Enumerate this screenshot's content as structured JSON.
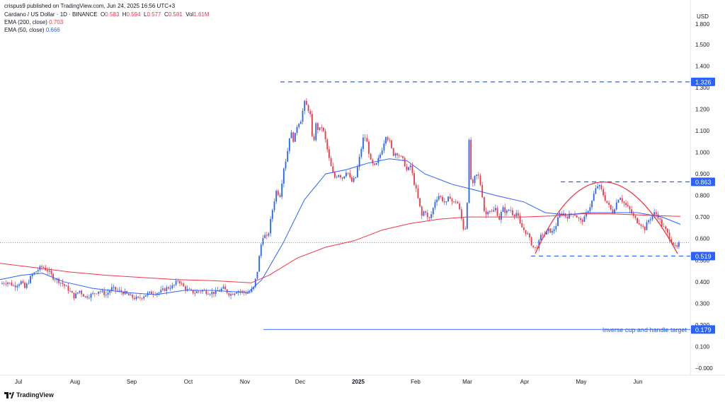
{
  "header": {
    "publisher": "crispus9 published on TradingView.com, Jun 24, 2025 16:56 UTC+3",
    "symbol": "Cardano / US Dollar · 1D · BINANCE",
    "o_label": "O",
    "o": "0.583",
    "h_label": "H",
    "h": "0.594",
    "l_label": "L",
    "l": "0.577",
    "c_label": "C",
    "c": "0.581",
    "vol_label": "Vol",
    "vol": "1.61M",
    "ema200_label": "EMA (200, close)",
    "ema200": "0.703",
    "ema50_label": "EMA (50, close)",
    "ema50": "0.666"
  },
  "footer": {
    "brand": "TradingView"
  },
  "colors": {
    "up": "#2962ff",
    "down": "#f23645",
    "ema200": "#f23645",
    "ema50": "#2962ff",
    "level": "#2962ff",
    "cup": "#f23645"
  },
  "chart_data": {
    "type": "candlestick",
    "currency": "USD",
    "ylim": [
      -0.03,
      1.86
    ],
    "y_ticks": [
      "−0.000",
      "0.100",
      "0.200",
      "0.300",
      "0.400",
      "0.500",
      "0.600",
      "0.700",
      "0.800",
      "0.900",
      "1.000",
      "1.100",
      "1.200",
      "1.300",
      "1.400",
      "1.500",
      "1.800"
    ],
    "x_ticks": [
      "Jul",
      "Aug",
      "Sep",
      "Oct",
      "Nov",
      "Dec",
      "2025",
      "Feb",
      "Mar",
      "Apr",
      "May",
      "Jun"
    ],
    "price_path": [
      [
        0,
        0.39
      ],
      [
        10,
        0.4
      ],
      [
        20,
        0.38
      ],
      [
        30,
        0.4
      ],
      [
        35,
        0.37
      ],
      [
        45,
        0.43
      ],
      [
        55,
        0.46
      ],
      [
        60,
        0.47
      ],
      [
        68,
        0.45
      ],
      [
        75,
        0.42
      ],
      [
        85,
        0.4
      ],
      [
        95,
        0.37
      ],
      [
        105,
        0.33
      ],
      [
        112,
        0.36
      ],
      [
        120,
        0.33
      ],
      [
        130,
        0.34
      ],
      [
        140,
        0.36
      ],
      [
        150,
        0.34
      ],
      [
        158,
        0.37
      ],
      [
        165,
        0.36
      ],
      [
        175,
        0.35
      ],
      [
        185,
        0.33
      ],
      [
        195,
        0.32
      ],
      [
        205,
        0.34
      ],
      [
        215,
        0.35
      ],
      [
        225,
        0.35
      ],
      [
        235,
        0.37
      ],
      [
        245,
        0.38
      ],
      [
        252,
        0.41
      ],
      [
        258,
        0.38
      ],
      [
        265,
        0.36
      ],
      [
        275,
        0.35
      ],
      [
        285,
        0.36
      ],
      [
        295,
        0.35
      ],
      [
        305,
        0.35
      ],
      [
        315,
        0.37
      ],
      [
        325,
        0.34
      ],
      [
        335,
        0.36
      ],
      [
        345,
        0.35
      ],
      [
        352,
        0.35
      ],
      [
        358,
        0.37
      ],
      [
        363,
        0.44
      ],
      [
        368,
        0.56
      ],
      [
        372,
        0.62
      ],
      [
        378,
        0.6
      ],
      [
        384,
        0.72
      ],
      [
        390,
        0.82
      ],
      [
        396,
        0.8
      ],
      [
        400,
        0.92
      ],
      [
        405,
        0.98
      ],
      [
        410,
        1.1
      ],
      [
        415,
        1.05
      ],
      [
        420,
        1.13
      ],
      [
        425,
        1.15
      ],
      [
        430,
        1.23
      ],
      [
        434,
        1.21
      ],
      [
        438,
        1.18
      ],
      [
        442,
        1.02
      ],
      [
        446,
        1.13
      ],
      [
        450,
        1.1
      ],
      [
        455,
        1.12
      ],
      [
        460,
        1.05
      ],
      [
        466,
        0.95
      ],
      [
        472,
        0.88
      ],
      [
        478,
        0.9
      ],
      [
        484,
        0.88
      ],
      [
        490,
        0.92
      ],
      [
        496,
        0.86
      ],
      [
        502,
        0.88
      ],
      [
        508,
        0.98
      ],
      [
        514,
        1.08
      ],
      [
        518,
        1.05
      ],
      [
        524,
        0.95
      ],
      [
        530,
        0.93
      ],
      [
        536,
        0.98
      ],
      [
        540,
        1.02
      ],
      [
        545,
        1.08
      ],
      [
        550,
        1.05
      ],
      [
        555,
        0.99
      ],
      [
        560,
        1.0
      ],
      [
        565,
        0.98
      ],
      [
        570,
        0.96
      ],
      [
        575,
        0.91
      ],
      [
        580,
        0.94
      ],
      [
        584,
        0.87
      ],
      [
        588,
        0.82
      ],
      [
        592,
        0.76
      ],
      [
        596,
        0.7
      ],
      [
        600,
        0.74
      ],
      [
        605,
        0.68
      ],
      [
        610,
        0.72
      ],
      [
        615,
        0.78
      ],
      [
        620,
        0.8
      ],
      [
        625,
        0.78
      ],
      [
        630,
        0.76
      ],
      [
        635,
        0.8
      ],
      [
        640,
        0.76
      ],
      [
        645,
        0.78
      ],
      [
        650,
        0.72
      ],
      [
        655,
        0.64
      ],
      [
        659,
        0.66
      ],
      [
        662,
        1.08
      ],
      [
        666,
        0.82
      ],
      [
        670,
        0.88
      ],
      [
        675,
        0.9
      ],
      [
        680,
        0.83
      ],
      [
        685,
        0.7
      ],
      [
        690,
        0.74
      ],
      [
        695,
        0.72
      ],
      [
        700,
        0.74
      ],
      [
        705,
        0.69
      ],
      [
        710,
        0.74
      ],
      [
        715,
        0.72
      ],
      [
        720,
        0.74
      ],
      [
        725,
        0.71
      ],
      [
        730,
        0.72
      ],
      [
        735,
        0.66
      ],
      [
        740,
        0.64
      ],
      [
        745,
        0.62
      ],
      [
        750,
        0.58
      ],
      [
        755,
        0.55
      ],
      [
        760,
        0.57
      ],
      [
        765,
        0.62
      ],
      [
        770,
        0.62
      ],
      [
        775,
        0.64
      ],
      [
        780,
        0.63
      ],
      [
        785,
        0.66
      ],
      [
        790,
        0.71
      ],
      [
        795,
        0.72
      ],
      [
        800,
        0.7
      ],
      [
        805,
        0.71
      ],
      [
        810,
        0.72
      ],
      [
        815,
        0.7
      ],
      [
        820,
        0.68
      ],
      [
        825,
        0.69
      ],
      [
        830,
        0.73
      ],
      [
        835,
        0.76
      ],
      [
        840,
        0.82
      ],
      [
        845,
        0.85
      ],
      [
        850,
        0.82
      ],
      [
        855,
        0.78
      ],
      [
        860,
        0.75
      ],
      [
        865,
        0.72
      ],
      [
        870,
        0.76
      ],
      [
        875,
        0.8
      ],
      [
        880,
        0.77
      ],
      [
        885,
        0.75
      ],
      [
        890,
        0.73
      ],
      [
        895,
        0.7
      ],
      [
        900,
        0.68
      ],
      [
        905,
        0.67
      ],
      [
        910,
        0.64
      ],
      [
        915,
        0.68
      ],
      [
        920,
        0.7
      ],
      [
        925,
        0.72
      ],
      [
        930,
        0.7
      ],
      [
        935,
        0.66
      ],
      [
        940,
        0.64
      ],
      [
        945,
        0.61
      ],
      [
        950,
        0.58
      ],
      [
        955,
        0.55
      ],
      [
        958,
        0.57
      ],
      [
        961,
        0.58
      ]
    ],
    "ema200_path": [
      [
        0,
        0.485
      ],
      [
        50,
        0.465
      ],
      [
        100,
        0.445
      ],
      [
        150,
        0.43
      ],
      [
        200,
        0.42
      ],
      [
        250,
        0.41
      ],
      [
        300,
        0.405
      ],
      [
        355,
        0.395
      ],
      [
        380,
        0.43
      ],
      [
        420,
        0.51
      ],
      [
        460,
        0.56
      ],
      [
        500,
        0.59
      ],
      [
        540,
        0.64
      ],
      [
        580,
        0.67
      ],
      [
        620,
        0.69
      ],
      [
        660,
        0.7
      ],
      [
        700,
        0.7
      ],
      [
        740,
        0.7
      ],
      [
        780,
        0.705
      ],
      [
        820,
        0.715
      ],
      [
        860,
        0.715
      ],
      [
        900,
        0.71
      ],
      [
        940,
        0.705
      ],
      [
        961,
        0.703
      ]
    ],
    "ema50_path": [
      [
        0,
        0.41
      ],
      [
        30,
        0.43
      ],
      [
        60,
        0.44
      ],
      [
        90,
        0.4
      ],
      [
        130,
        0.37
      ],
      [
        180,
        0.35
      ],
      [
        220,
        0.34
      ],
      [
        260,
        0.36
      ],
      [
        300,
        0.36
      ],
      [
        350,
        0.35
      ],
      [
        370,
        0.41
      ],
      [
        400,
        0.58
      ],
      [
        430,
        0.78
      ],
      [
        460,
        0.9
      ],
      [
        490,
        0.92
      ],
      [
        520,
        0.95
      ],
      [
        550,
        0.97
      ],
      [
        575,
        0.96
      ],
      [
        600,
        0.9
      ],
      [
        640,
        0.85
      ],
      [
        665,
        0.83
      ],
      [
        700,
        0.8
      ],
      [
        740,
        0.77
      ],
      [
        770,
        0.72
      ],
      [
        800,
        0.71
      ],
      [
        830,
        0.72
      ],
      [
        860,
        0.72
      ],
      [
        900,
        0.72
      ],
      [
        935,
        0.7
      ],
      [
        961,
        0.666
      ]
    ],
    "cup_arc": {
      "from": [
        756,
        0.53
      ],
      "peak": [
        848,
        0.862
      ],
      "to": [
        957,
        0.53
      ]
    },
    "levels": [
      {
        "value": 1.326,
        "label": "1.326",
        "x_from": 396,
        "style": "dashed"
      },
      {
        "value": 0.863,
        "label": "0.863",
        "x_from": 792,
        "style": "dashed"
      },
      {
        "value": 0.519,
        "label": "0.519",
        "x_from": 750,
        "style": "dashed"
      },
      {
        "value": 0.179,
        "label": "0.179",
        "x_from": 372,
        "style": "solid",
        "annotation": "Inverse cup and handle target"
      }
    ],
    "last_price": 0.581
  }
}
